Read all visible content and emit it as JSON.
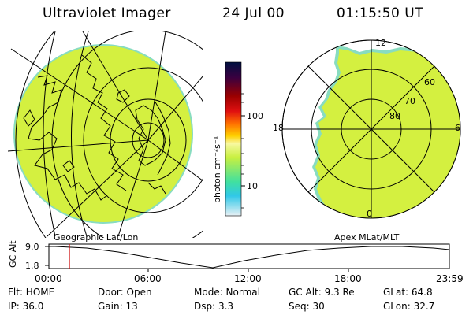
{
  "header": {
    "title": "Ultraviolet Imager",
    "date": "24 Jul 00",
    "time": "01:15:50 UT"
  },
  "colorbar": {
    "unit_label": "photon cm⁻²s⁻¹",
    "ticks": [
      "100",
      "10"
    ],
    "scale": "log"
  },
  "left_panel": {
    "label": "Geographic Lat/Lon"
  },
  "right_panel": {
    "label": "Apex MLat/MLT",
    "lat_labels": [
      "80",
      "70",
      "60"
    ],
    "mlt_labels": [
      "12",
      "18",
      "6",
      "0"
    ]
  },
  "timeline": {
    "y_title": "GC Alt",
    "y_ticks": [
      "9.0",
      "1.8"
    ],
    "x_ticks": [
      "00:00",
      "06:00",
      "12:00",
      "18:00",
      "23:59"
    ],
    "marker_time": "01:15:50"
  },
  "status": {
    "row1": {
      "flt": "Flt: HOME",
      "door": "Door: Open",
      "mode": "Mode: Normal",
      "gc_alt": "GC Alt: 9.3 Re",
      "glat": "GLat:  64.8"
    },
    "row2": {
      "ip": "IP: 36.0",
      "gain": "Gain: 13",
      "dsp": "Dsp:     3.3",
      "seq": "Seq: 30",
      "glon": "GLon:  32.7"
    }
  },
  "colors": {
    "image_fill": "#d4f040",
    "image_edge": "#88dcc0",
    "marker": "#cc0000",
    "colorbar_stops": [
      "#001040",
      "#3a0040",
      "#9a0000",
      "#e01010",
      "#ff7000",
      "#ffd000",
      "#f8f8a0",
      "#c8f040",
      "#40e0a0",
      "#30c8e8",
      "#d8e8f0"
    ]
  }
}
